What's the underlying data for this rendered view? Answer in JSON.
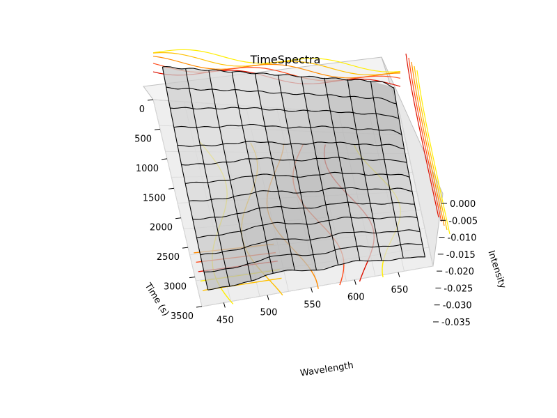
{
  "chart_data": {
    "type": "surface3d",
    "title": "TimeSpectra",
    "xlabel": "Wavelength",
    "ylabel": "Time (s)",
    "zlabel": "Intensity",
    "x_ticks": [
      "450",
      "500",
      "550",
      "600",
      "650"
    ],
    "y_ticks": [
      "0",
      "500",
      "1000",
      "1500",
      "2000",
      "2500",
      "3000",
      "3500"
    ],
    "z_ticks": [
      "0.000",
      "-0.005",
      "-0.010",
      "-0.015",
      "-0.020",
      "-0.025",
      "-0.030",
      "-0.035"
    ],
    "xlim": [
      425,
      690
    ],
    "ylim": [
      0,
      3500
    ],
    "zlim": [
      -0.035,
      0.0
    ],
    "surface_color": "#d8d8d8",
    "wire_color": "#000000",
    "contour_colors": [
      "#ffee00",
      "#ffc000",
      "#ff8a00",
      "#ff4a1a",
      "#dd1100"
    ],
    "grid": true,
    "pane_color": "#eeeeee"
  }
}
